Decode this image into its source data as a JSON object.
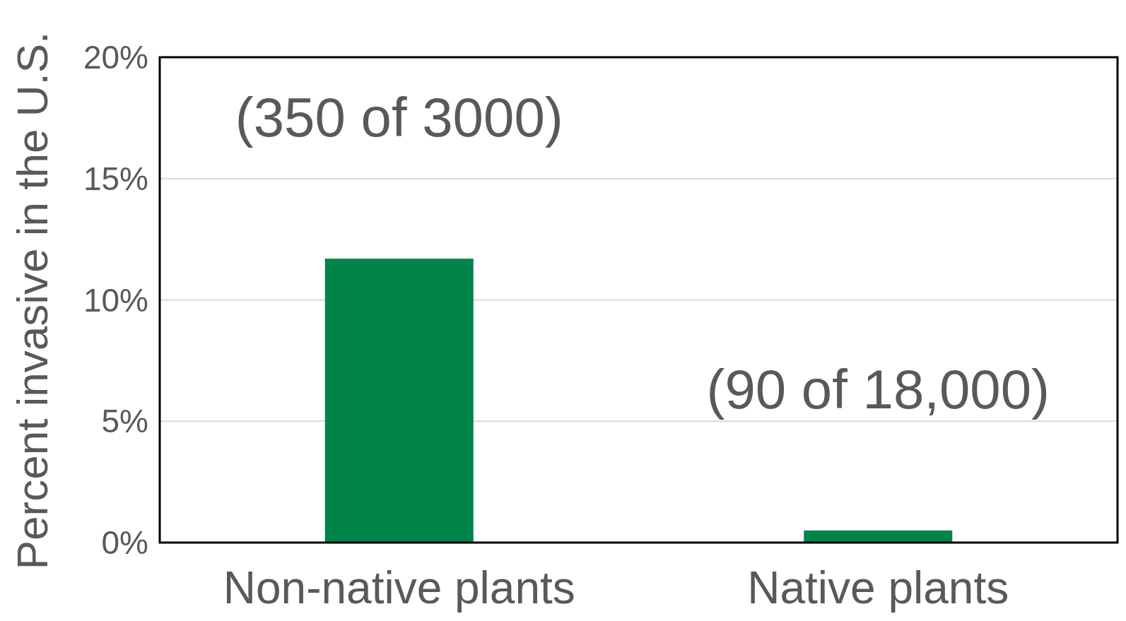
{
  "chart_data": {
    "type": "bar",
    "ylabel": "Percent invasive in the U.S.",
    "categories": [
      "Non-native plants",
      "Native plants"
    ],
    "values": [
      11.7,
      0.5
    ],
    "color": "#00844a",
    "ylim": [
      0,
      20
    ],
    "yticks": [
      {
        "value": 0,
        "label": "0%"
      },
      {
        "value": 5,
        "label": "5%"
      },
      {
        "value": 10,
        "label": "10%"
      },
      {
        "value": 15,
        "label": "15%"
      },
      {
        "value": 20,
        "label": "20%"
      }
    ],
    "grid": "y",
    "annotations": [
      "(350 of 3000)",
      "(90 of 18,000)"
    ]
  }
}
